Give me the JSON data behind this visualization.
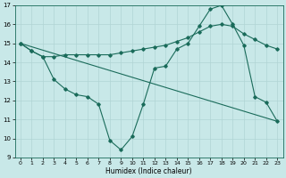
{
  "xlabel": "Humidex (Indice chaleur)",
  "background_color": "#c8e8e8",
  "grid_color": "#b0d4d4",
  "line_color": "#1a6b5a",
  "xlim": [
    -0.5,
    23.5
  ],
  "ylim": [
    9,
    17
  ],
  "xticks": [
    0,
    1,
    2,
    3,
    4,
    5,
    6,
    7,
    8,
    9,
    10,
    11,
    12,
    13,
    14,
    15,
    16,
    17,
    18,
    19,
    20,
    21,
    22,
    23
  ],
  "yticks": [
    9,
    10,
    11,
    12,
    13,
    14,
    15,
    16,
    17
  ],
  "line1_x": [
    0,
    1,
    2,
    3,
    4,
    5,
    6,
    7,
    8,
    9,
    10,
    11,
    12,
    13,
    14,
    15,
    16,
    17,
    18,
    19,
    20,
    21,
    22,
    23
  ],
  "line1_y": [
    15.0,
    14.6,
    14.3,
    14.3,
    14.4,
    14.4,
    14.4,
    14.4,
    14.4,
    14.5,
    14.6,
    14.7,
    14.8,
    14.9,
    15.1,
    15.3,
    15.6,
    15.9,
    16.0,
    15.9,
    15.5,
    15.2,
    14.9,
    14.7
  ],
  "line2_x": [
    0,
    1,
    2,
    3,
    4,
    5,
    6,
    7,
    8,
    9,
    10,
    11,
    12,
    13,
    14,
    15,
    16,
    17,
    18,
    19,
    20,
    21,
    22,
    23
  ],
  "line2_y": [
    15.0,
    14.6,
    14.3,
    13.1,
    12.6,
    12.3,
    12.2,
    11.8,
    9.9,
    9.4,
    10.1,
    11.8,
    13.7,
    13.8,
    14.7,
    15.0,
    15.9,
    16.8,
    17.0,
    16.0,
    14.9,
    12.2,
    11.9,
    10.9
  ],
  "line3_x": [
    0,
    23
  ],
  "line3_y": [
    15.0,
    10.9
  ]
}
